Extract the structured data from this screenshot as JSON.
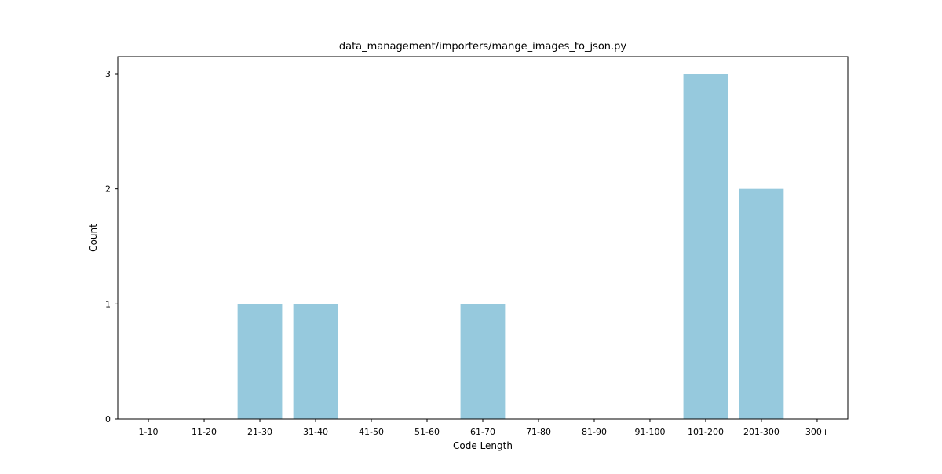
{
  "chart_data": {
    "type": "bar",
    "title": "data_management/importers/mange_images_to_json.py",
    "xlabel": "Code Length",
    "ylabel": "Count",
    "categories": [
      "1-10",
      "11-20",
      "21-30",
      "31-40",
      "41-50",
      "51-60",
      "61-70",
      "71-80",
      "81-90",
      "91-100",
      "101-200",
      "201-300",
      "300+"
    ],
    "values": [
      0,
      0,
      1,
      1,
      0,
      0,
      1,
      0,
      0,
      0,
      3,
      2,
      0
    ],
    "ylim": [
      0,
      3.15
    ],
    "yticks": [
      0,
      1,
      2,
      3
    ],
    "grid": false,
    "legend": "none",
    "bar_color": "#96c9dd"
  }
}
